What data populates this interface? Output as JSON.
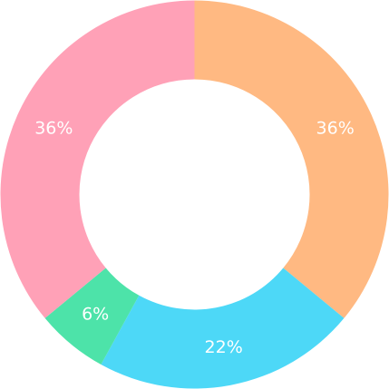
{
  "chart_data": {
    "type": "pie",
    "donut": true,
    "slices": [
      {
        "label": "36%",
        "value": 36,
        "color": "#FFB982"
      },
      {
        "label": "22%",
        "value": 22,
        "color": "#4DD8F7"
      },
      {
        "label": "6%",
        "value": 6,
        "color": "#4DE3A9"
      },
      {
        "label": "36%",
        "value": 36,
        "color": "#FFA1B7"
      }
    ],
    "start": "top",
    "direction": "clockwise"
  }
}
